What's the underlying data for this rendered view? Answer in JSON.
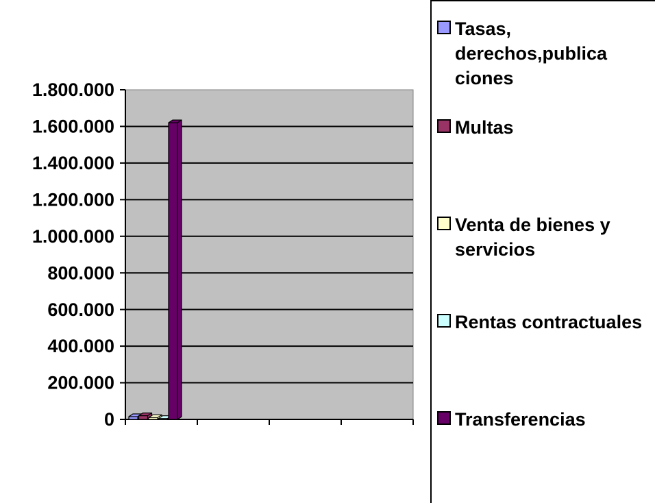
{
  "chart_data": {
    "type": "bar3d",
    "categories": [
      null,
      null,
      null,
      null
    ],
    "series": [
      {
        "name": "Tasas, derechos,publica ciones",
        "color": "#9999ff",
        "values": [
          15000,
          null,
          null,
          null
        ]
      },
      {
        "name": "Multas",
        "color": "#993366",
        "values": [
          20000,
          null,
          null,
          null
        ]
      },
      {
        "name": "Venta de bienes y servicios",
        "color": "#ffffcc",
        "values": [
          10000,
          null,
          null,
          null
        ]
      },
      {
        "name": "Rentas contractuales",
        "color": "#ccffff",
        "values": [
          5000,
          null,
          null,
          null
        ]
      },
      {
        "name": "Transferencias",
        "color": "#660066",
        "values": [
          1620000,
          null,
          null,
          null
        ]
      }
    ],
    "ylim": [
      0,
      1800000
    ],
    "yticks": [
      0,
      {
        "value": 200000,
        "label": "200.000"
      },
      {
        "value": 400000,
        "label": "400.000"
      },
      {
        "value": 600000,
        "label": "600.000"
      },
      {
        "value": 800000,
        "label": "800.000"
      },
      {
        "value": 1000000,
        "label": "1.000.000"
      },
      {
        "value": 1200000,
        "label": "1.200.000"
      },
      {
        "value": 1400000,
        "label": "1.400.000"
      },
      {
        "value": 1600000,
        "label": "1.600.000"
      },
      {
        "value": 1800000,
        "label": "1.800.000"
      }
    ],
    "grid": true
  }
}
